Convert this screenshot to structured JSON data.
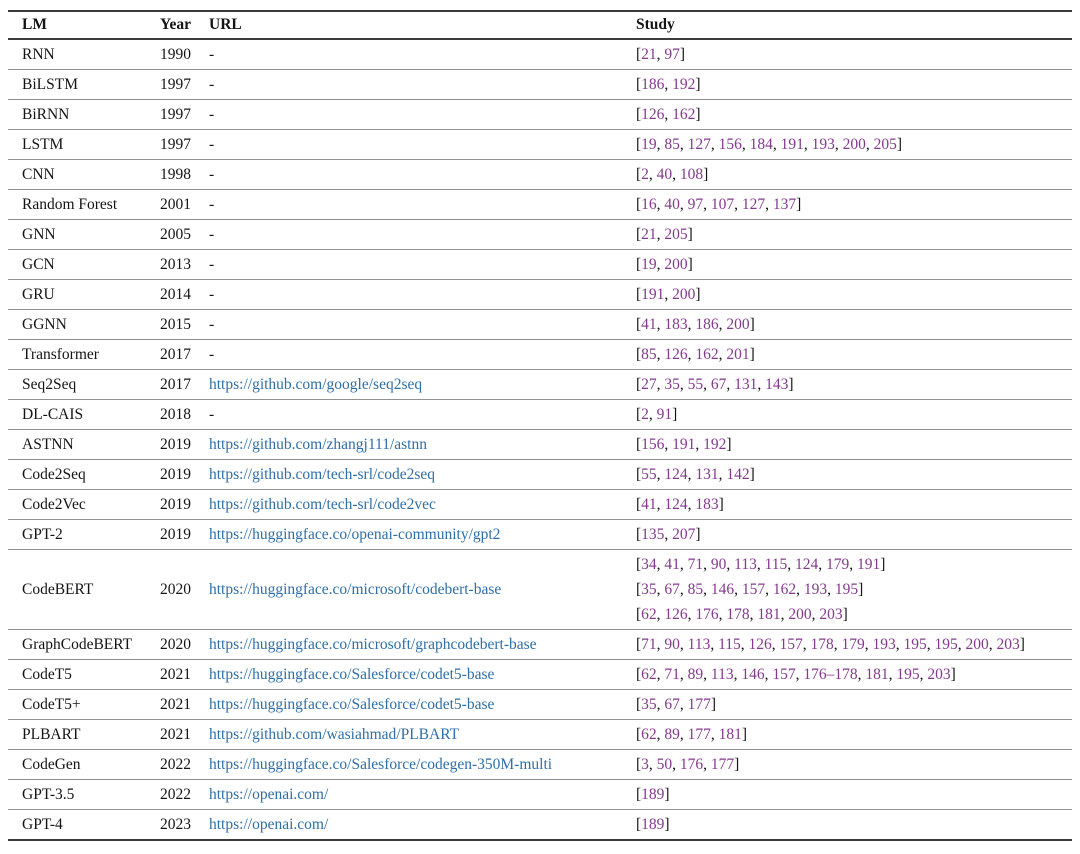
{
  "table": {
    "headers": {
      "lm": "LM",
      "year": "Year",
      "url": "URL",
      "study": "Study"
    },
    "rows": [
      {
        "lm": "RNN",
        "year": "1990",
        "url": "-",
        "study_lines": [
          [
            "21",
            "97"
          ]
        ]
      },
      {
        "lm": "BiLSTM",
        "year": "1997",
        "url": "-",
        "study_lines": [
          [
            "186",
            "192"
          ]
        ]
      },
      {
        "lm": "BiRNN",
        "year": "1997",
        "url": "-",
        "study_lines": [
          [
            "126",
            "162"
          ]
        ]
      },
      {
        "lm": "LSTM",
        "year": "1997",
        "url": "-",
        "study_lines": [
          [
            "19",
            "85",
            "127",
            "156",
            "184",
            "191",
            "193",
            "200",
            "205"
          ]
        ]
      },
      {
        "lm": "CNN",
        "year": "1998",
        "url": "-",
        "study_lines": [
          [
            "2",
            "40",
            "108"
          ]
        ]
      },
      {
        "lm": "Random Forest",
        "year": "2001",
        "url": "-",
        "study_lines": [
          [
            "16",
            "40",
            "97",
            "107",
            "127",
            "137"
          ]
        ]
      },
      {
        "lm": "GNN",
        "year": "2005",
        "url": "-",
        "study_lines": [
          [
            "21",
            "205"
          ]
        ]
      },
      {
        "lm": "GCN",
        "year": "2013",
        "url": "-",
        "study_lines": [
          [
            "19",
            "200"
          ]
        ]
      },
      {
        "lm": "GRU",
        "year": "2014",
        "url": "-",
        "study_lines": [
          [
            "191",
            "200"
          ]
        ]
      },
      {
        "lm": "GGNN",
        "year": "2015",
        "url": "-",
        "study_lines": [
          [
            "41",
            "183",
            "186",
            "200"
          ]
        ]
      },
      {
        "lm": "Transformer",
        "year": "2017",
        "url": "-",
        "study_lines": [
          [
            "85",
            "126",
            "162",
            "201"
          ]
        ]
      },
      {
        "lm": "Seq2Seq",
        "year": "2017",
        "url": "https://github.com/google/seq2seq",
        "study_lines": [
          [
            "27",
            "35",
            "55",
            "67",
            "131",
            "143"
          ]
        ]
      },
      {
        "lm": "DL-CAIS",
        "year": "2018",
        "url": "-",
        "study_lines": [
          [
            "2",
            "91"
          ]
        ]
      },
      {
        "lm": "ASTNN",
        "year": "2019",
        "url": "https://github.com/zhangj111/astnn",
        "study_lines": [
          [
            "156",
            "191",
            "192"
          ]
        ]
      },
      {
        "lm": "Code2Seq",
        "year": "2019",
        "url": "https://github.com/tech-srl/code2seq",
        "study_lines": [
          [
            "55",
            "124",
            "131",
            "142"
          ]
        ]
      },
      {
        "lm": "Code2Vec",
        "year": "2019",
        "url": "https://github.com/tech-srl/code2vec",
        "study_lines": [
          [
            "41",
            "124",
            "183"
          ]
        ]
      },
      {
        "lm": "GPT-2",
        "year": "2019",
        "url": "https://huggingface.co/openai-community/gpt2",
        "study_lines": [
          [
            "135",
            "207"
          ]
        ]
      },
      {
        "lm": "CodeBERT",
        "year": "2020",
        "url": "https://huggingface.co/microsoft/codebert-base",
        "study_lines": [
          [
            "34",
            "41",
            "71",
            "90",
            "113",
            "115",
            "124",
            "179",
            "191"
          ],
          [
            "35",
            "67",
            "85",
            "146",
            "157",
            "162",
            "193",
            "195"
          ],
          [
            "62",
            "126",
            "176",
            "178",
            "181",
            "200",
            "203"
          ]
        ]
      },
      {
        "lm": "GraphCodeBERT",
        "year": "2020",
        "url": "https://huggingface.co/microsoft/graphcodebert-base",
        "study_lines": [
          [
            "71",
            "90",
            "113",
            "115",
            "126",
            "157",
            "178",
            "179",
            "193",
            "195",
            "195",
            "200",
            "203"
          ]
        ]
      },
      {
        "lm": "CodeT5",
        "year": "2021",
        "url": "https://huggingface.co/Salesforce/codet5-base",
        "study_lines": [
          [
            "62",
            "71",
            "89",
            "113",
            "146",
            "157",
            "176–178",
            "181",
            "195",
            "203"
          ]
        ]
      },
      {
        "lm": "CodeT5+",
        "year": "2021",
        "url": "https://huggingface.co/Salesforce/codet5-base",
        "study_lines": [
          [
            "35",
            "67",
            "177"
          ]
        ]
      },
      {
        "lm": "PLBART",
        "year": "2021",
        "url": "https://github.com/wasiahmad/PLBART",
        "study_lines": [
          [
            "62",
            "89",
            "177",
            "181"
          ]
        ]
      },
      {
        "lm": "CodeGen",
        "year": "2022",
        "url": "https://huggingface.co/Salesforce/codegen-350M-multi",
        "study_lines": [
          [
            "3",
            "50",
            "176",
            "177"
          ]
        ]
      },
      {
        "lm": "GPT-3.5",
        "year": "2022",
        "url": "https://openai.com/",
        "study_lines": [
          [
            "189"
          ]
        ]
      },
      {
        "lm": "GPT-4",
        "year": "2023",
        "url": "https://openai.com/",
        "study_lines": [
          [
            "189"
          ]
        ]
      }
    ]
  },
  "colors": {
    "url_blue": "#2F6EA6",
    "cite_purple": "#833A8C",
    "text": "#141414",
    "rule_dark": "#3b3b3b",
    "rule_light": "#929292"
  }
}
